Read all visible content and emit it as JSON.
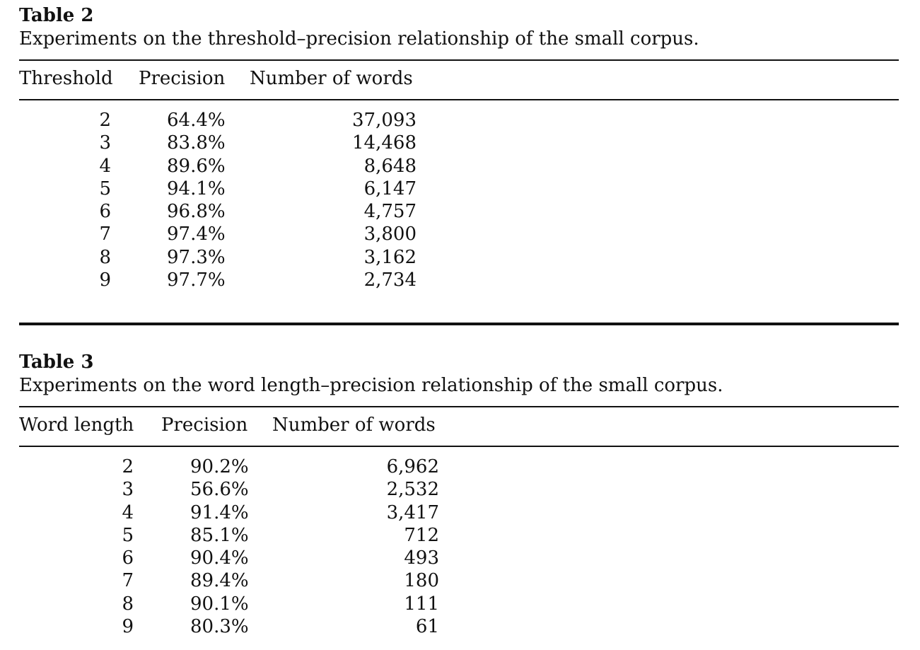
{
  "table2": {
    "label": "Table 2",
    "caption": "Experiments on the threshold–precision relationship of the small corpus.",
    "headers": [
      "Threshold",
      "Precision",
      "Number of words"
    ],
    "rows": [
      [
        "2",
        "64.4%",
        "37,093"
      ],
      [
        "3",
        "83.8%",
        "14,468"
      ],
      [
        "4",
        "89.6%",
        "8,648"
      ],
      [
        "5",
        "94.1%",
        "6,147"
      ],
      [
        "6",
        "96.8%",
        "4,757"
      ],
      [
        "7",
        "97.4%",
        "3,800"
      ],
      [
        "8",
        "97.3%",
        "3,162"
      ],
      [
        "9",
        "97.7%",
        "2,734"
      ]
    ]
  },
  "table3": {
    "label": "Table 3",
    "caption": "Experiments on the word length–precision relationship of the small corpus.",
    "headers": [
      "Word length",
      "Precision",
      "Number of words"
    ],
    "rows": [
      [
        "2",
        "90.2%",
        "6,962"
      ],
      [
        "3",
        "56.6%",
        "2,532"
      ],
      [
        "4",
        "91.4%",
        "3,417"
      ],
      [
        "5",
        "85.1%",
        "712"
      ],
      [
        "6",
        "90.4%",
        "493"
      ],
      [
        "7",
        "89.4%",
        "180"
      ],
      [
        "8",
        "90.1%",
        "111"
      ],
      [
        "9",
        "80.3%",
        "61"
      ]
    ]
  }
}
